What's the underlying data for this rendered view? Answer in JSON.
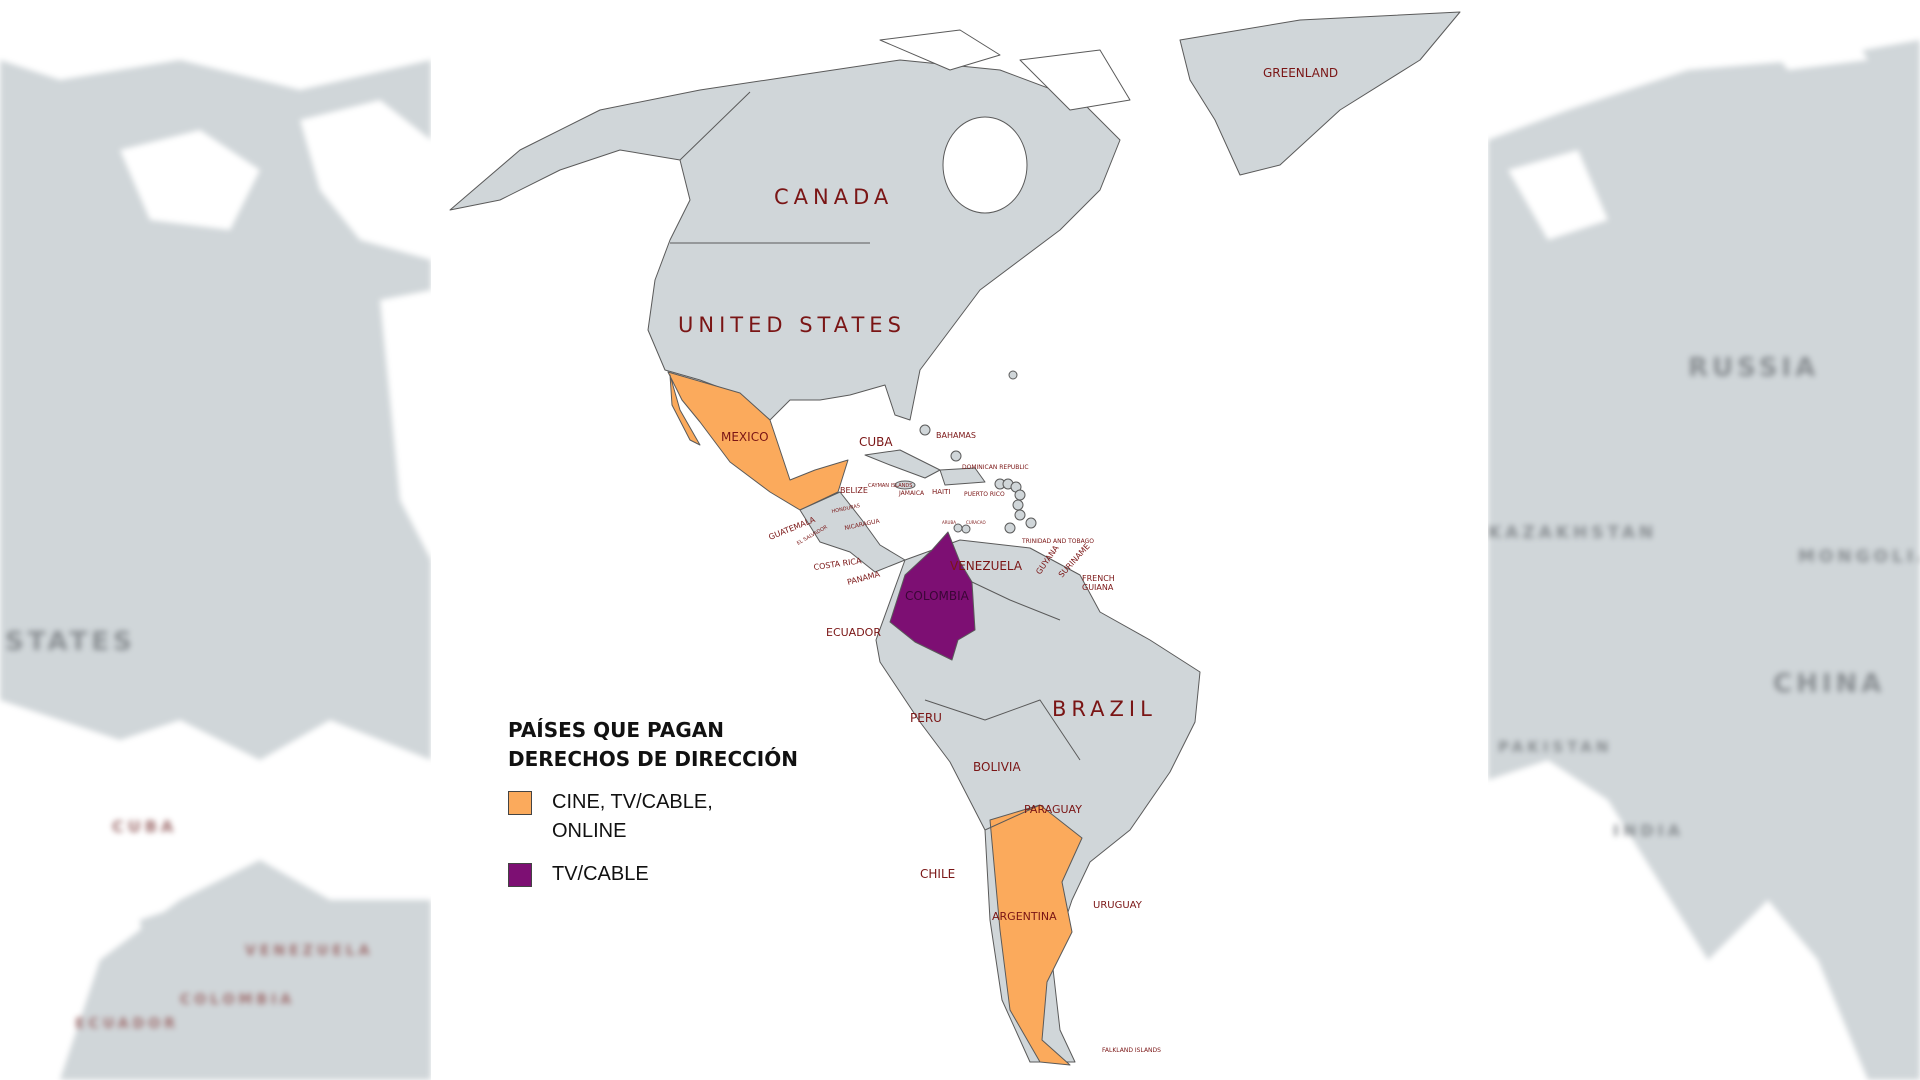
{
  "colors": {
    "land": "#d0d6d9",
    "water": "#ffffff",
    "border": "#5a5a5a",
    "cine_tv_online": "#fbaa5c",
    "tv_cable": "#7d0f73",
    "label": "#7a1515"
  },
  "legend": {
    "title_line1": "PAÍSES QUE PAGAN",
    "title_line2": "DERECHOS DE DIRECCIÓN",
    "items": [
      {
        "label": "CINE, TV/CABLE, ONLINE",
        "color": "#fbaa5c",
        "countries": [
          "MEXICO",
          "ARGENTINA"
        ]
      },
      {
        "label": "TV/CABLE",
        "color": "#7d0f73",
        "countries": [
          "COLOMBIA"
        ]
      }
    ]
  },
  "labels": {
    "greenland": "GREENLAND",
    "canada": "CANADA",
    "united_states": "UNITED STATES",
    "mexico": "MEXICO",
    "cuba": "CUBA",
    "bahamas": "BAHAMAS",
    "belize": "BELIZE",
    "guatemala": "GUATEMALA",
    "el_salvador": "EL SALVADOR",
    "honduras": "HONDURAS",
    "nicaragua": "NICARAGUA",
    "costa_rica": "COSTA RICA",
    "panama": "PANAMA",
    "jamaica": "JAMAICA",
    "haiti": "HAITI",
    "dominican_republic": "DOMINICAN REPUBLIC",
    "puerto_rico": "PUERTO RICO",
    "cayman": "CAYMAN ISLANDS",
    "trinidad": "TRINIDAD AND TOBAGO",
    "aruba": "ARUBA",
    "curacao": "CURACAO",
    "venezuela": "VENEZUELA",
    "colombia": "COLOMBIA",
    "ecuador": "ECUADOR",
    "guyana": "GUYANA",
    "suriname": "SURINAME",
    "french_guiana_1": "FRENCH",
    "french_guiana_2": "GUIANA",
    "brazil": "BRAZIL",
    "peru": "PERU",
    "bolivia": "BOLIVIA",
    "paraguay": "PARAGUAY",
    "chile": "CHILE",
    "argentina": "ARGENTINA",
    "uruguay": "URUGUAY",
    "falkland": "FALKLAND ISLANDS"
  },
  "side_labels": {
    "left": [
      "STATES",
      "CUBA",
      "VENEZUELA",
      "COLOMBIA",
      "ECUADOR"
    ],
    "right": [
      "RUSSIA",
      "KAZAKHSTAN",
      "MONGOLIA",
      "CHINA",
      "INDIA",
      "PAKISTAN"
    ]
  }
}
